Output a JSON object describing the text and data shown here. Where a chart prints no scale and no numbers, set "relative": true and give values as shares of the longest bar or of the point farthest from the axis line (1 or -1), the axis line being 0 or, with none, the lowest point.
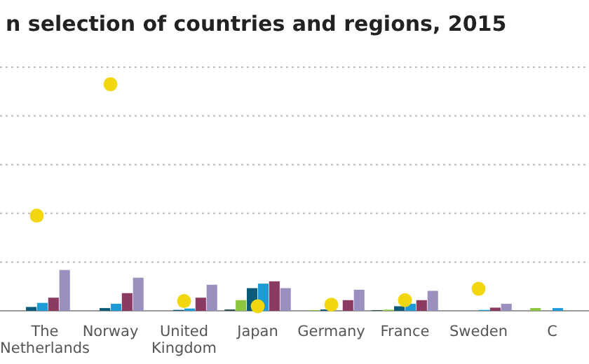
{
  "chart_data": {
    "type": "bar",
    "title": "n selection of countries and regions, 2015",
    "relative": true,
    "grid": true,
    "categories": [
      "The Netherlands",
      "Norway",
      "United Kingdom",
      "Japan",
      "Germany",
      "France",
      "Sweden",
      "C"
    ],
    "series": [
      {
        "color": "#2f4f4f",
        "values": [
          0,
          0,
          0,
          0.006,
          0,
          0.003,
          0,
          0
        ]
      },
      {
        "color": "#8cc63f",
        "values": [
          0,
          0,
          0,
          0.047,
          0.003,
          0.005,
          0,
          0.012
        ]
      },
      {
        "color": "#0b5a78",
        "values": [
          0.017,
          0.012,
          0.004,
          0.1,
          0.006,
          0.02,
          0,
          0
        ]
      },
      {
        "color": "#1e9bd7",
        "values": [
          0.035,
          0.031,
          0.01,
          0.12,
          null,
          0.031,
          0.004,
          0.012
        ]
      },
      {
        "color": "#8b3a62",
        "values": [
          0.058,
          0.078,
          0.058,
          0.13,
          0.047,
          0.047,
          0.014,
          0
        ]
      },
      {
        "color": "#9b8fc0",
        "values": [
          0.18,
          0.146,
          0.115,
          0.1,
          0.093,
          0.088,
          0.031,
          0
        ]
      },
      {
        "type": "scatter",
        "color": "#f2d70f",
        "marker": "circle",
        "x": [
          "The Netherlands",
          "Norway",
          "United Kingdom",
          "Japan",
          "Germany",
          "France",
          "Sweden"
        ],
        "values": [
          0.42,
          1,
          0.043,
          0.02,
          0.027,
          0.047,
          0.097
        ]
      }
    ]
  }
}
